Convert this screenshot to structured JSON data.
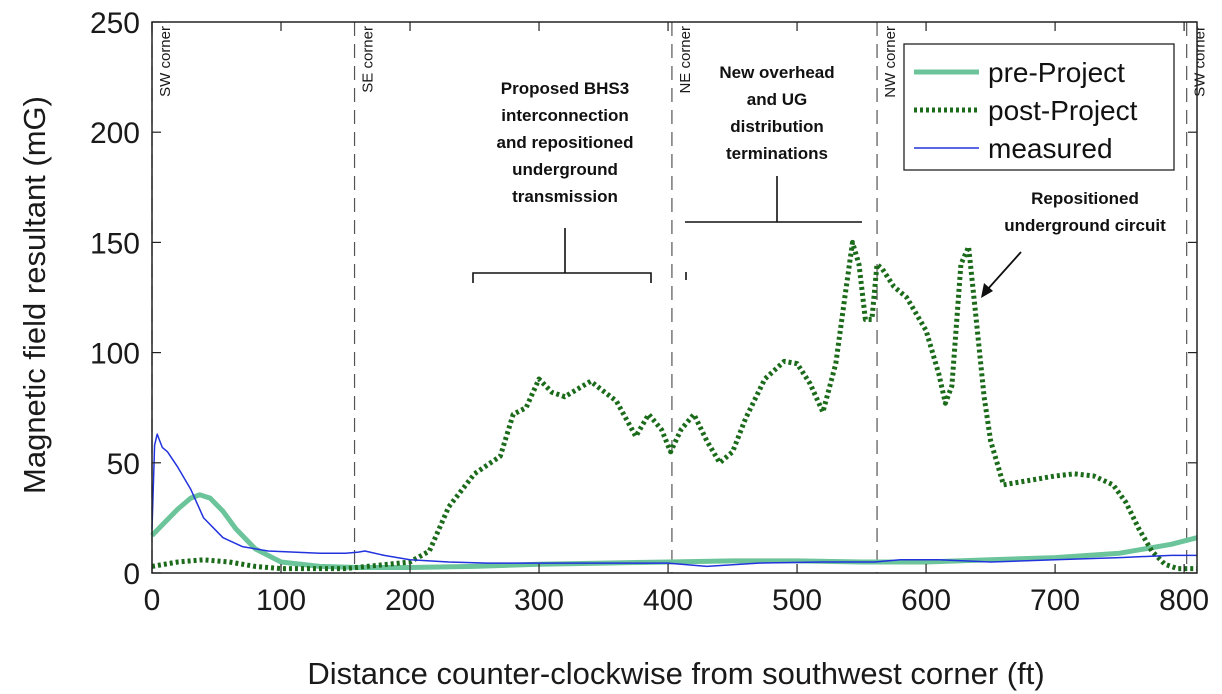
{
  "chart_data": {
    "type": "line",
    "xlabel": "Distance counter-clockwise from southwest corner (ft)",
    "ylabel": "Magnetic field resultant (mG)",
    "xlim": [
      0,
      810
    ],
    "ylim": [
      0,
      250
    ],
    "xticks": [
      0,
      100,
      200,
      300,
      400,
      500,
      600,
      700,
      800
    ],
    "yticks": [
      0,
      50,
      100,
      150,
      200,
      250
    ],
    "grid": false,
    "legend_position": "top-right",
    "series": [
      {
        "name": "pre-Project",
        "color": "#6cc49b",
        "style": "solid-thick",
        "x": [
          0,
          10,
          20,
          30,
          37,
          45,
          55,
          65,
          80,
          100,
          130,
          160,
          180,
          200,
          250,
          300,
          350,
          400,
          450,
          500,
          550,
          600,
          650,
          700,
          750,
          790,
          810
        ],
        "y": [
          17,
          23,
          29,
          34,
          35.5,
          34,
          28,
          20,
          11,
          5,
          3,
          2.5,
          2.5,
          2.5,
          3,
          4,
          4.5,
          5,
          5.5,
          5.5,
          5,
          5,
          6,
          7,
          9,
          13,
          16
        ]
      },
      {
        "name": "post-Project",
        "color": "#1b6b1b",
        "style": "dotted",
        "x": [
          0,
          20,
          40,
          60,
          80,
          100,
          150,
          200,
          215,
          230,
          250,
          270,
          280,
          290,
          300,
          310,
          320,
          340,
          360,
          375,
          385,
          395,
          402,
          410,
          420,
          430,
          440,
          450,
          460,
          475,
          490,
          500,
          510,
          520,
          530,
          537,
          543,
          548,
          553,
          558,
          562,
          566,
          575,
          585,
          600,
          610,
          615,
          620,
          627,
          633,
          638,
          645,
          650,
          660,
          680,
          700,
          715,
          730,
          745,
          755,
          765,
          775,
          785,
          795,
          810
        ],
        "y": [
          3,
          5,
          6,
          5,
          3,
          2,
          2,
          5,
          10,
          30,
          45,
          53,
          72,
          75,
          88,
          82,
          80,
          87,
          78,
          62,
          72,
          65,
          55,
          65,
          72,
          60,
          50,
          55,
          70,
          88,
          96,
          95,
          86,
          73,
          95,
          125,
          150,
          140,
          115,
          115,
          140,
          138,
          130,
          125,
          110,
          90,
          77,
          85,
          140,
          148,
          120,
          80,
          60,
          40,
          42,
          44,
          45,
          44,
          40,
          32,
          20,
          10,
          4,
          2,
          2
        ]
      },
      {
        "name": "measured",
        "color": "#2233dd",
        "style": "solid-thin",
        "x": [
          0,
          2,
          4,
          6,
          8,
          12,
          20,
          30,
          40,
          55,
          70,
          90,
          110,
          130,
          150,
          160,
          165,
          180,
          200,
          230,
          260,
          300,
          350,
          400,
          430,
          470,
          520,
          560,
          580,
          610,
          650,
          700,
          750,
          790,
          810
        ],
        "y": [
          20,
          58,
          63,
          60,
          57,
          55,
          48,
          38,
          25,
          16,
          12,
          10,
          9.5,
          9,
          9,
          9.5,
          10,
          8,
          6,
          5,
          4.5,
          4.5,
          4.5,
          4.5,
          3,
          4.5,
          5,
          5,
          6,
          6,
          5,
          6,
          7,
          8,
          8
        ]
      }
    ],
    "vlines": [
      {
        "x": 0,
        "label": "SW corner"
      },
      {
        "x": 157,
        "label": "SE corner"
      },
      {
        "x": 403,
        "label": "NE corner"
      },
      {
        "x": 562,
        "label": "NW corner"
      },
      {
        "x": 802,
        "label": "SW corner"
      }
    ],
    "annotations": [
      {
        "text": [
          "Proposed BHS3",
          "interconnection",
          "and repositioned",
          "underground",
          "transmission"
        ]
      },
      {
        "text": [
          "New overhead",
          "and UG",
          "distribution",
          "terminations"
        ]
      },
      {
        "text": [
          "Repositioned",
          "underground circuit"
        ]
      }
    ]
  }
}
